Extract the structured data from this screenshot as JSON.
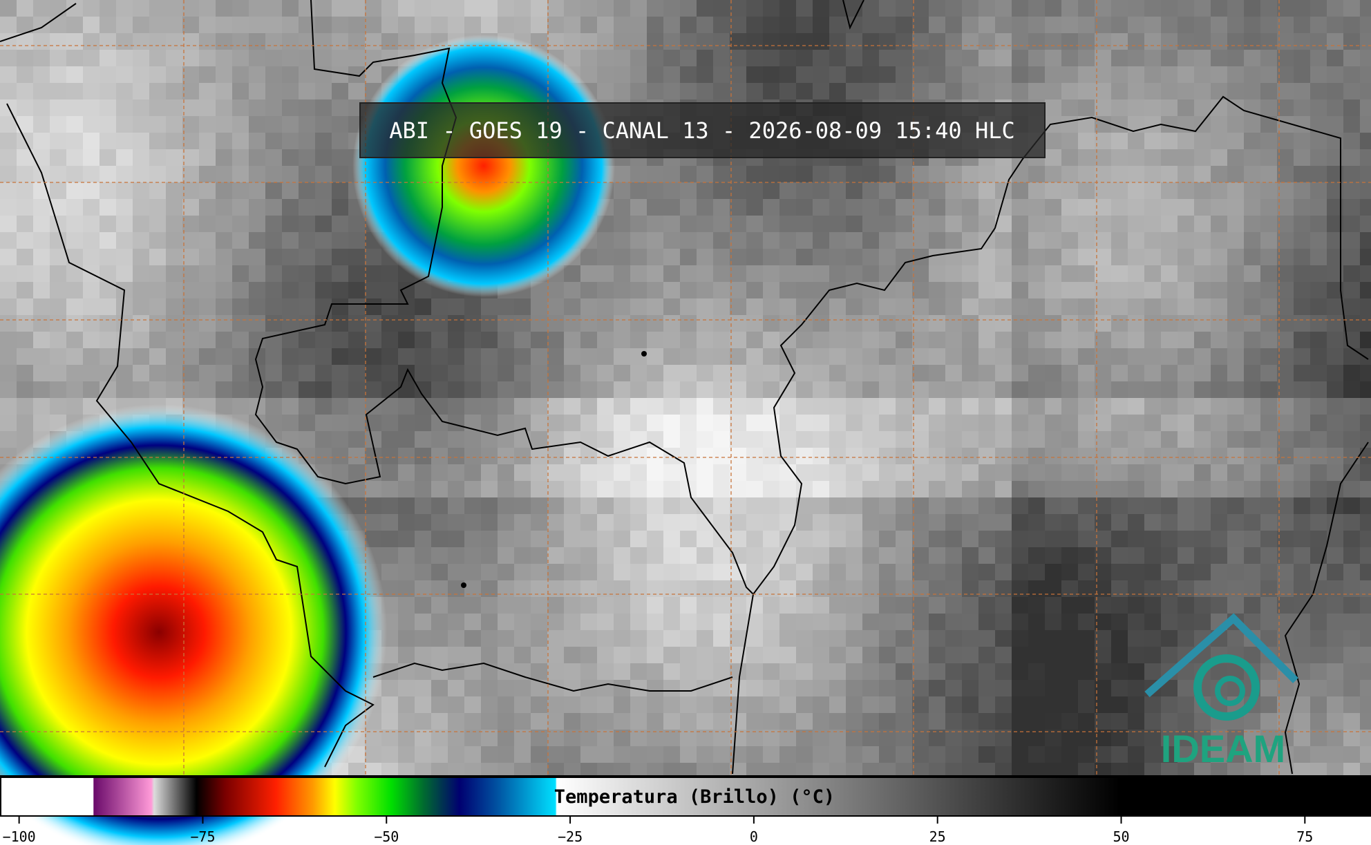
{
  "title": "ABI - GOES 19 - CANAL 13 - 2026-08-09 15:40 HLC",
  "colorbar": {
    "label": "Temperatura (Brillo) (°C)",
    "xlim": [
      -102.6,
      84
    ],
    "ticks": [
      {
        "value": -100,
        "label": "−100"
      },
      {
        "value": -75,
        "label": "−75"
      },
      {
        "value": -50,
        "label": "−50"
      },
      {
        "value": -25,
        "label": "−25"
      },
      0,
      25,
      50,
      75
    ]
  },
  "logo": "IDEAM"
}
